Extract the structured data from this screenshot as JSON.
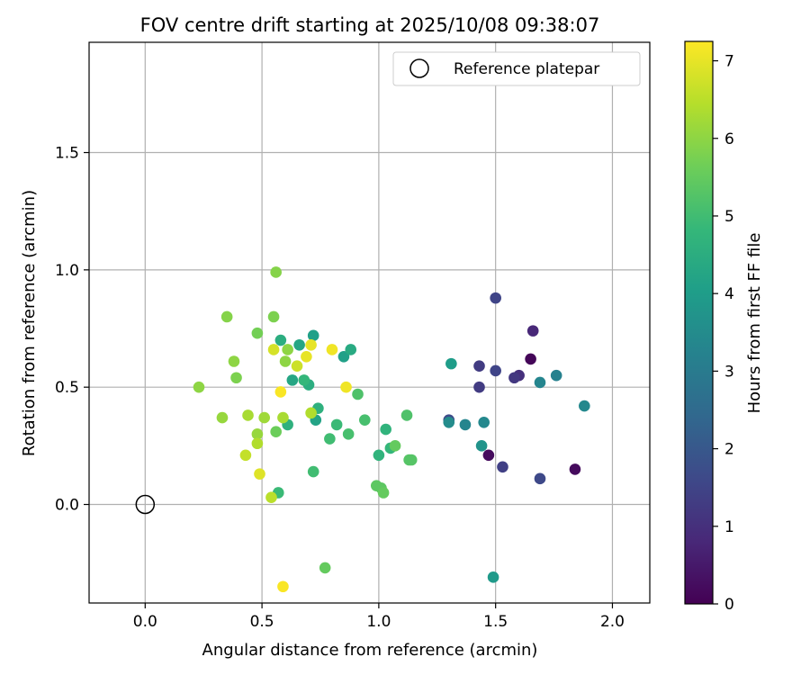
{
  "chart_data": {
    "type": "scatter",
    "title": "FOV centre drift starting at 2025/10/08 09:38:07",
    "xlabel": "Angular distance from reference (arcmin)",
    "ylabel": "Rotation from reference (arcmin)",
    "xlim": [
      -0.24,
      2.16
    ],
    "ylim": [
      -0.42,
      1.97
    ],
    "xticks": [
      0.0,
      0.5,
      1.0,
      1.5,
      2.0
    ],
    "xtick_labels": [
      "0.0",
      "0.5",
      "1.0",
      "1.5",
      "2.0"
    ],
    "yticks": [
      0.0,
      0.5,
      1.0,
      1.5
    ],
    "ytick_labels": [
      "0.0",
      "0.5",
      "1.0",
      "1.5"
    ],
    "grid": true,
    "legend": {
      "position": "top-right",
      "entries": [
        "Reference platepar"
      ]
    },
    "reference_point": {
      "x": 0.0,
      "y": 0.0,
      "marker": "open-circle"
    },
    "colorbar": {
      "label": "Hours from first FF file",
      "range": [
        0,
        7.25
      ],
      "ticks": [
        0,
        1,
        2,
        3,
        4,
        5,
        6,
        7
      ],
      "tick_labels": [
        "0",
        "1",
        "2",
        "3",
        "4",
        "5",
        "6",
        "7"
      ],
      "colormap": "viridis",
      "stops": [
        "#440154",
        "#482878",
        "#3e4989",
        "#31688e",
        "#26828e",
        "#1f9e89",
        "#35b779",
        "#6ece58",
        "#b5de2b",
        "#fde725"
      ]
    },
    "points": [
      {
        "x": 1.65,
        "y": 0.62,
        "c": 0.1
      },
      {
        "x": 1.84,
        "y": 0.15,
        "c": 0.2
      },
      {
        "x": 1.47,
        "y": 0.21,
        "c": 0.2
      },
      {
        "x": 1.66,
        "y": 0.74,
        "c": 0.8
      },
      {
        "x": 1.6,
        "y": 0.55,
        "c": 1.0
      },
      {
        "x": 1.58,
        "y": 0.54,
        "c": 1.2
      },
      {
        "x": 1.43,
        "y": 0.59,
        "c": 1.3
      },
      {
        "x": 1.43,
        "y": 0.5,
        "c": 1.3
      },
      {
        "x": 1.53,
        "y": 0.16,
        "c": 1.4
      },
      {
        "x": 1.5,
        "y": 0.88,
        "c": 1.5
      },
      {
        "x": 1.5,
        "y": 0.57,
        "c": 1.5
      },
      {
        "x": 1.69,
        "y": 0.11,
        "c": 1.6
      },
      {
        "x": 1.3,
        "y": 0.36,
        "c": 1.7
      },
      {
        "x": 1.76,
        "y": 0.55,
        "c": 3.2
      },
      {
        "x": 1.69,
        "y": 0.52,
        "c": 3.3
      },
      {
        "x": 1.37,
        "y": 0.34,
        "c": 3.3
      },
      {
        "x": 1.88,
        "y": 0.42,
        "c": 3.4
      },
      {
        "x": 1.45,
        "y": 0.35,
        "c": 3.4
      },
      {
        "x": 1.3,
        "y": 0.35,
        "c": 3.5
      },
      {
        "x": 1.44,
        "y": 0.25,
        "c": 3.7
      },
      {
        "x": 1.49,
        "y": -0.31,
        "c": 3.9
      },
      {
        "x": 1.31,
        "y": 0.6,
        "c": 4.0
      },
      {
        "x": 0.72,
        "y": 0.72,
        "c": 4.1
      },
      {
        "x": 0.85,
        "y": 0.63,
        "c": 4.1
      },
      {
        "x": 0.73,
        "y": 0.36,
        "c": 4.2
      },
      {
        "x": 0.66,
        "y": 0.68,
        "c": 4.3
      },
      {
        "x": 0.63,
        "y": 0.53,
        "c": 4.3
      },
      {
        "x": 0.88,
        "y": 0.66,
        "c": 4.4
      },
      {
        "x": 0.7,
        "y": 0.51,
        "c": 4.5
      },
      {
        "x": 0.58,
        "y": 0.7,
        "c": 4.5
      },
      {
        "x": 0.61,
        "y": 0.34,
        "c": 4.6
      },
      {
        "x": 0.74,
        "y": 0.41,
        "c": 4.6
      },
      {
        "x": 1.0,
        "y": 0.21,
        "c": 4.7
      },
      {
        "x": 1.03,
        "y": 0.32,
        "c": 4.7
      },
      {
        "x": 1.05,
        "y": 0.24,
        "c": 4.8
      },
      {
        "x": 0.68,
        "y": 0.53,
        "c": 4.8
      },
      {
        "x": 0.82,
        "y": 0.34,
        "c": 4.9
      },
      {
        "x": 0.57,
        "y": 0.05,
        "c": 4.9
      },
      {
        "x": 0.72,
        "y": 0.14,
        "c": 5.0
      },
      {
        "x": 0.79,
        "y": 0.28,
        "c": 5.0
      },
      {
        "x": 0.87,
        "y": 0.3,
        "c": 5.1
      },
      {
        "x": 0.94,
        "y": 0.36,
        "c": 5.1
      },
      {
        "x": 0.91,
        "y": 0.47,
        "c": 5.2
      },
      {
        "x": 1.12,
        "y": 0.38,
        "c": 5.2
      },
      {
        "x": 1.13,
        "y": 0.19,
        "c": 5.3
      },
      {
        "x": 1.14,
        "y": 0.19,
        "c": 5.3
      },
      {
        "x": 0.99,
        "y": 0.08,
        "c": 5.4
      },
      {
        "x": 1.01,
        "y": 0.07,
        "c": 5.4
      },
      {
        "x": 1.02,
        "y": 0.05,
        "c": 5.5
      },
      {
        "x": 0.77,
        "y": -0.27,
        "c": 5.5
      },
      {
        "x": 1.07,
        "y": 0.25,
        "c": 5.5
      },
      {
        "x": 0.56,
        "y": 0.31,
        "c": 5.6
      },
      {
        "x": 0.48,
        "y": 0.73,
        "c": 5.7
      },
      {
        "x": 0.39,
        "y": 0.54,
        "c": 5.8
      },
      {
        "x": 0.55,
        "y": 0.8,
        "c": 5.8
      },
      {
        "x": 0.35,
        "y": 0.8,
        "c": 5.9
      },
      {
        "x": 0.56,
        "y": 0.99,
        "c": 5.9
      },
      {
        "x": 0.61,
        "y": 0.66,
        "c": 6.0
      },
      {
        "x": 0.6,
        "y": 0.61,
        "c": 6.0
      },
      {
        "x": 0.38,
        "y": 0.61,
        "c": 6.0
      },
      {
        "x": 0.23,
        "y": 0.5,
        "c": 6.0
      },
      {
        "x": 0.33,
        "y": 0.37,
        "c": 6.1
      },
      {
        "x": 0.48,
        "y": 0.3,
        "c": 6.1
      },
      {
        "x": 0.51,
        "y": 0.37,
        "c": 6.2
      },
      {
        "x": 0.44,
        "y": 0.38,
        "c": 6.3
      },
      {
        "x": 0.59,
        "y": 0.37,
        "c": 6.3
      },
      {
        "x": 0.48,
        "y": 0.26,
        "c": 6.4
      },
      {
        "x": 0.71,
        "y": 0.39,
        "c": 6.4
      },
      {
        "x": 0.54,
        "y": 0.03,
        "c": 6.5
      },
      {
        "x": 0.43,
        "y": 0.21,
        "c": 6.6
      },
      {
        "x": 0.65,
        "y": 0.59,
        "c": 6.7
      },
      {
        "x": 0.55,
        "y": 0.66,
        "c": 6.8
      },
      {
        "x": 0.49,
        "y": 0.13,
        "c": 6.9
      },
      {
        "x": 0.71,
        "y": 0.68,
        "c": 7.0
      },
      {
        "x": 0.69,
        "y": 0.63,
        "c": 7.0
      },
      {
        "x": 0.8,
        "y": 0.66,
        "c": 7.1
      },
      {
        "x": 0.86,
        "y": 0.5,
        "c": 7.1
      },
      {
        "x": 0.58,
        "y": 0.48,
        "c": 7.2
      },
      {
        "x": 0.59,
        "y": -0.35,
        "c": 7.2
      }
    ]
  }
}
